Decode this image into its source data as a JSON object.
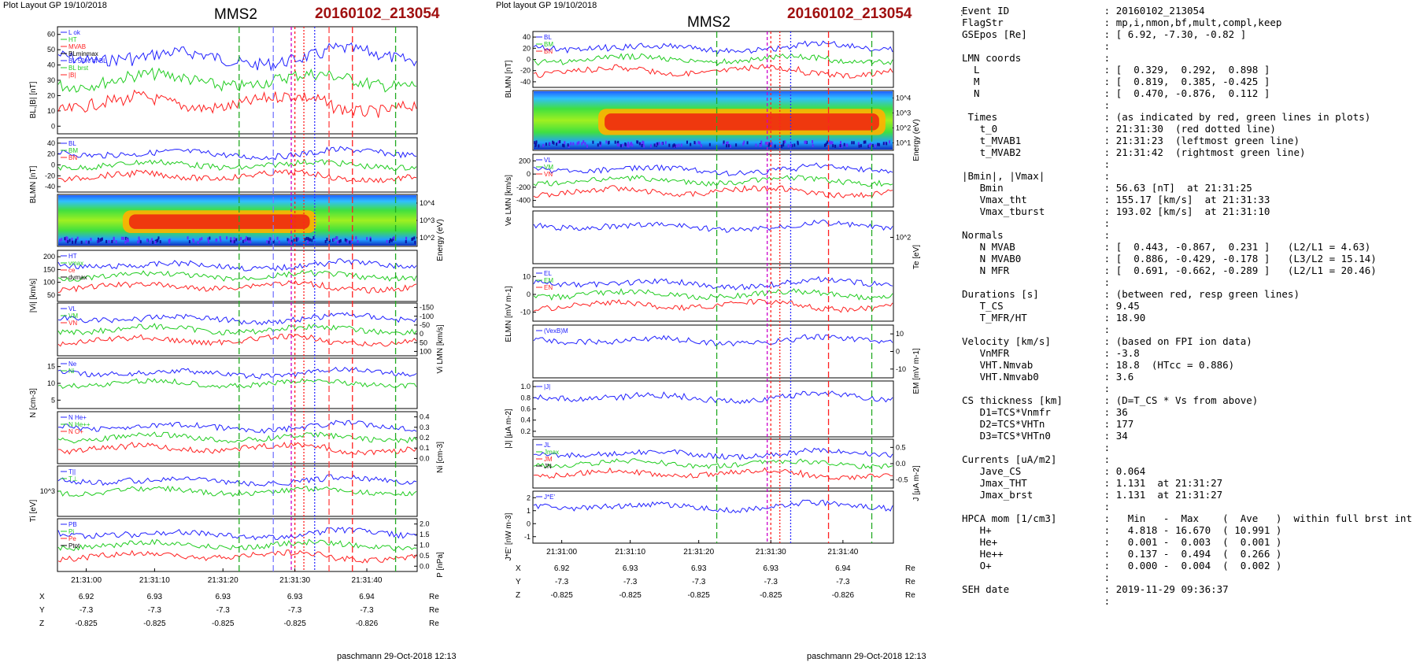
{
  "page": {
    "left_header": "Plot Layout GP 19/10/2018",
    "right_header": "Plot layout GP 19/10/2018",
    "sc": "MMS2",
    "event": "20160102_213054",
    "footer": "paschmann 29-Oct-2018 12:13",
    "colon_top": ":"
  },
  "colors": {
    "L": "#2020ff",
    "M": "#20cc20",
    "N": "#ff2020",
    "red_line": "#ff2020",
    "green_line": "#22aa22",
    "magenta": "#cc00cc",
    "blue_dot": "#3030ff",
    "event_title": "#a01010"
  },
  "chart_data": [
    {
      "type": "line",
      "panel": "left",
      "x_ticks": [
        "21:31:00",
        "21:31:10",
        "21:31:20",
        "21:31:30",
        "21:31:40"
      ],
      "position_table": {
        "rows": [
          {
            "label": "X",
            "values": [
              "6.92",
              "6.93",
              "6.93",
              "6.93",
              "6.94"
            ],
            "unit": "Re"
          },
          {
            "label": "Y",
            "values": [
              "-7.3",
              "-7.3",
              "-7.3",
              "-7.3",
              "-7.3"
            ],
            "unit": "Re"
          },
          {
            "label": "Z",
            "values": [
              "-0.825",
              "-0.825",
              "-0.825",
              "-0.825",
              "-0.826"
            ],
            "unit": "Re"
          }
        ]
      },
      "panels": [
        {
          "ylabel": "BL,|B| [nT]",
          "yticks": [
            "0",
            "10",
            "20",
            "30",
            "40",
            "50",
            "60"
          ],
          "legend": [
            "L ok",
            "HT",
            "MVAB",
            "BLminmax",
            "BL 50% of BL",
            "BL brst",
            "|B|"
          ],
          "side": "left"
        },
        {
          "ylabel": "BLMN [nT]",
          "yticks": [
            "-40",
            "-20",
            "0",
            "20",
            "40"
          ],
          "legend": [
            "BL",
            "BM",
            "BN"
          ],
          "side": "left"
        },
        {
          "ylabel": "Energy (eV)",
          "yticks": [
            "10^2",
            "10^3",
            "10^4"
          ],
          "side": "right",
          "kind": "spectrogram"
        },
        {
          "ylabel": "|Vi| [km/s]",
          "yticks": [
            "50",
            "100",
            "150",
            "200"
          ],
          "legend": [
            "HT",
            "vmax",
            "ce",
            "dvmax"
          ],
          "side": "left"
        },
        {
          "ylabel": "Vi LMN [km/s]",
          "yticks": [
            "100",
            "50",
            "0",
            "-50",
            "-100",
            "-150"
          ],
          "legend": [
            "VL",
            "VM",
            "VN"
          ],
          "side": "right"
        },
        {
          "ylabel": "N [cm-3]",
          "yticks": [
            "5",
            "10",
            "15"
          ],
          "legend": [
            "Ne",
            "Ni"
          ],
          "side": "left"
        },
        {
          "ylabel": "Ni [cm-3]",
          "yticks": [
            "0.0",
            "0.1",
            "0.2",
            "0.3",
            "0.4"
          ],
          "legend": [
            "N He+",
            "N He++",
            "N O+"
          ],
          "side": "right"
        },
        {
          "ylabel": "Ti [eV]",
          "yticks": [
            "10^3"
          ],
          "legend": [
            "T||",
            "T⊥"
          ],
          "side": "left"
        },
        {
          "ylabel": "P [nPa]",
          "yticks": [
            "0.0",
            "0.5",
            "1.0",
            "1.5",
            "2.0"
          ],
          "legend": [
            "PB",
            "Pi",
            "Pe",
            "Ptot"
          ],
          "side": "right"
        }
      ]
    },
    {
      "type": "line",
      "panel": "center",
      "x_ticks": [
        "21:31:00",
        "21:31:10",
        "21:31:20",
        "21:31:30",
        "21:31:40"
      ],
      "position_table": {
        "rows": [
          {
            "label": "X",
            "values": [
              "6.92",
              "6.93",
              "6.93",
              "6.93",
              "6.94"
            ],
            "unit": "Re"
          },
          {
            "label": "Y",
            "values": [
              "-7.3",
              "-7.3",
              "-7.3",
              "-7.3",
              "-7.3"
            ],
            "unit": "Re"
          },
          {
            "label": "Z",
            "values": [
              "-0.825",
              "-0.825",
              "-0.825",
              "-0.825",
              "-0.826"
            ],
            "unit": "Re"
          }
        ]
      },
      "panels": [
        {
          "ylabel": "BLMN [nT]",
          "yticks": [
            "-40",
            "-20",
            "0",
            "20",
            "40"
          ],
          "legend": [
            "BL",
            "BM",
            "BN"
          ],
          "side": "left"
        },
        {
          "ylabel": "Energy (eV)",
          "yticks": [
            "10^1",
            "10^2",
            "10^3",
            "10^4"
          ],
          "side": "right",
          "kind": "spectrogram"
        },
        {
          "ylabel": "Ve LMN [km/s]",
          "yticks": [
            "-400",
            "-200",
            "0",
            "200"
          ],
          "legend": [
            "VL",
            "VM",
            "VN"
          ],
          "side": "left"
        },
        {
          "ylabel": "Te [eV]",
          "yticks": [
            "10^2"
          ],
          "side": "right"
        },
        {
          "ylabel": "ELMN [mV m-1]",
          "yticks": [
            "-10",
            "0",
            "10"
          ],
          "legend": [
            "EL",
            "EM",
            "EN"
          ],
          "side": "left"
        },
        {
          "ylabel": "EM [mV m-1]",
          "yticks": [
            "-10",
            "0",
            "10"
          ],
          "legend": [
            "(VexB)M"
          ],
          "side": "right"
        },
        {
          "ylabel": "|J| [μA m-2]",
          "yticks": [
            "0.2",
            "0.4",
            "0.6",
            "0.8",
            "1.0"
          ],
          "legend": [
            "|J|"
          ],
          "side": "left"
        },
        {
          "ylabel": "J [μA m-2]",
          "yticks": [
            "-0.5",
            "0.0",
            "0.5"
          ],
          "legend": [
            "JL",
            "Jmax",
            "JM",
            "JN"
          ],
          "side": "right"
        },
        {
          "ylabel": "J*E' [nW m-3]",
          "yticks": [
            "-1",
            "0",
            "1",
            "2"
          ],
          "legend": [
            "J*E'"
          ],
          "side": "left"
        }
      ]
    }
  ],
  "info": [
    {
      "k": "Event ID",
      "v": "20160102_213054"
    },
    {
      "k": "FlagStr",
      "v": "mp,i,nmon,bf,mult,compl,keep"
    },
    {
      "k": "GSEpos [Re]",
      "v": "[ 6.92, -7.30, -0.82 ]"
    },
    {
      "k": "",
      "v": ""
    },
    {
      "k": "LMN coords",
      "v": ""
    },
    {
      "k": "  L",
      "v": "[  0.329,  0.292,  0.898 ]"
    },
    {
      "k": "  M",
      "v": "[  0.819,  0.385, -0.425 ]"
    },
    {
      "k": "  N",
      "v": "[  0.470, -0.876,  0.112 ]"
    },
    {
      "k": "",
      "v": ""
    },
    {
      "k": " Times",
      "v": "(as indicated by red, green lines in plots)"
    },
    {
      "k": "   t_0",
      "v": "21:31:30  (red dotted line)"
    },
    {
      "k": "   t_MVAB1",
      "v": "21:31:23  (leftmost green line)"
    },
    {
      "k": "   t_MVAB2",
      "v": "21:31:42  (rightmost green line)"
    },
    {
      "k": "",
      "v": ""
    },
    {
      "k": "|Bmin|, |Vmax|",
      "v": ""
    },
    {
      "k": "   Bmin",
      "v": "56.63 [nT]  at 21:31:25"
    },
    {
      "k": "   Vmax_tht",
      "v": "155.17 [km/s]  at 21:31:33"
    },
    {
      "k": "   Vmax_tburst",
      "v": "193.02 [km/s]  at 21:31:10"
    },
    {
      "k": "",
      "v": ""
    },
    {
      "k": "Normals",
      "v": ""
    },
    {
      "k": "   N MVAB",
      "v": "[  0.443, -0.867,  0.231 ]   (L2/L1 = 4.63)"
    },
    {
      "k": "   N MVAB0",
      "v": "[  0.886, -0.429, -0.178 ]   (L3/L2 = 15.14)"
    },
    {
      "k": "   N MFR",
      "v": "[  0.691, -0.662, -0.289 ]   (L2/L1 = 20.46)"
    },
    {
      "k": "",
      "v": ""
    },
    {
      "k": "Durations [s]",
      "v": "(between red, resp green lines)"
    },
    {
      "k": "   T_CS",
      "v": "9.45"
    },
    {
      "k": "   T_MFR/HT",
      "v": "18.90"
    },
    {
      "k": "",
      "v": ""
    },
    {
      "k": "Velocity [km/s]",
      "v": "(based on FPI ion data)"
    },
    {
      "k": "   VnMFR",
      "v": "-3.8"
    },
    {
      "k": "   VHT.Nmvab",
      "v": "18.8  (HTcc = 0.886)"
    },
    {
      "k": "   VHT.Nmvab0",
      "v": "3.6"
    },
    {
      "k": "",
      "v": ""
    },
    {
      "k": "CS thickness [km]",
      "v": "(D=T_CS * Vs from above)"
    },
    {
      "k": "   D1=TCS*Vnmfr",
      "v": "36"
    },
    {
      "k": "   D2=TCS*VHTn",
      "v": "177"
    },
    {
      "k": "   D3=TCS*VHTn0",
      "v": "34"
    },
    {
      "k": "",
      "v": ""
    },
    {
      "k": "Currents [uA/m2]",
      "v": ""
    },
    {
      "k": "   Jave_CS",
      "v": "0.064"
    },
    {
      "k": "   Jmax_THT",
      "v": "1.131  at 21:31:27"
    },
    {
      "k": "   Jmax_brst",
      "v": "1.131  at 21:31:27"
    },
    {
      "k": "",
      "v": ""
    },
    {
      "k": "HPCA mom [1/cm3]",
      "v": "  Min   -  Max    (  Ave   )  within full brst int"
    },
    {
      "k": "   H+",
      "v": "  4.818 - 16.670  ( 10.991 )"
    },
    {
      "k": "   He+",
      "v": "  0.001 -  0.003  (  0.001 )"
    },
    {
      "k": "   He++",
      "v": "  0.137 -  0.494  (  0.266 )"
    },
    {
      "k": "   O+",
      "v": "  0.000 -  0.004  (  0.002 )"
    },
    {
      "k": "",
      "v": ""
    },
    {
      "k": "SEH date",
      "v": "2019-11-29 09:36:37"
    },
    {
      "k": "",
      "v": ""
    }
  ]
}
